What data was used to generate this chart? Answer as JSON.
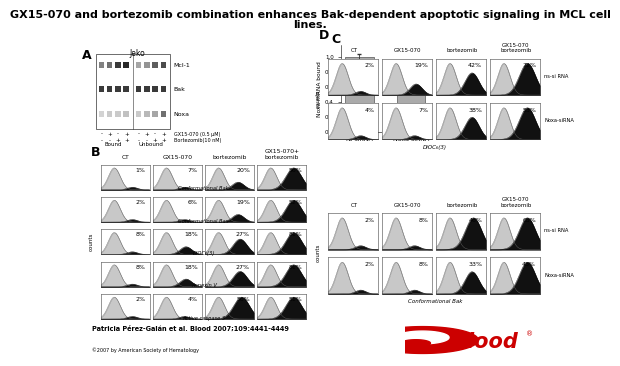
{
  "title": "GX15-070 and bortezomib combination enhances Bak-dependent apoptotic signaling in MCL cell\nlines.",
  "panel_A_label": "A",
  "panel_B_label": "B",
  "panel_C_label": "C",
  "panel_D_label": "D",
  "jeko_label": "Jeko",
  "western_bands": [
    "Mcl-1",
    "Bak",
    "Noxa"
  ],
  "bound_label": "Bound",
  "unbound_label": "Unbound",
  "gx_label": "GX15-070 (0.5 μM)",
  "bort_label": "Bortezomib(10 nM)",
  "panel_C_bars": [
    1.0,
    0.68
  ],
  "panel_C_errors": [
    0.04,
    0.1
  ],
  "panel_C_xlabels": [
    "ns-siRNA",
    "Noxa siRNA"
  ],
  "panel_C_ylabel": "Noxa mRNA bound",
  "panel_C_yticks": [
    0.0,
    0.2,
    0.4,
    0.6,
    0.8,
    1.0
  ],
  "panel_C_ylim": [
    0.0,
    1.15
  ],
  "panel_B_columns": [
    "CT",
    "GX15-070",
    "bortezomib",
    "GX15-070+\nbortezomib"
  ],
  "panel_B_rows": [
    "Conformational Bak",
    "Conformational Bax",
    "DiOC₆(3)",
    "Annexin V",
    "Active caspase 3"
  ],
  "panel_B_percents": [
    [
      "1%",
      "7%",
      "20%",
      "56%"
    ],
    [
      "2%",
      "6%",
      "19%",
      "52%"
    ],
    [
      "8%",
      "18%",
      "27%",
      "81%"
    ],
    [
      "8%",
      "18%",
      "27%",
      "81%"
    ],
    [
      "2%",
      "4%",
      "56%",
      "51%"
    ]
  ],
  "panel_D_top_columns": [
    "CT",
    "GX15-070",
    "bortezomib",
    "GX15-070\nbortezomib"
  ],
  "panel_D_top_label": "DiOC₆(3)",
  "panel_D_top_rows": [
    "ns-si RNA",
    "Noxa-siRNA"
  ],
  "panel_D_top_percents": [
    [
      "2%",
      "19%",
      "42%",
      "72%"
    ],
    [
      "4%",
      "7%",
      "38%",
      "53%"
    ]
  ],
  "panel_D_bot_columns": [
    "CT",
    "GX15-070",
    "bortezomib",
    "GX15-070\nbortezomib"
  ],
  "panel_D_bot_label": "Conformational Bak",
  "panel_D_bot_rows": [
    "ns-si RNA",
    "Noxa-siRNA"
  ],
  "panel_D_bot_percents": [
    [
      "2%",
      "8%",
      "46%",
      "65%"
    ],
    [
      "2%",
      "8%",
      "33%",
      "48%"
    ]
  ],
  "citation": "Patricia Pérez-Galán et al. Blood 2007;109:4441-4449",
  "copyright": "©2007 by American Society of Hematology",
  "background_color": "#ffffff",
  "bar_color": "#aaaaaa",
  "title_fontsize": 8,
  "small_fontsize": 5.0,
  "tiny_fontsize": 4.0,
  "panel_label_fontsize": 9,
  "counts_label": "counts"
}
